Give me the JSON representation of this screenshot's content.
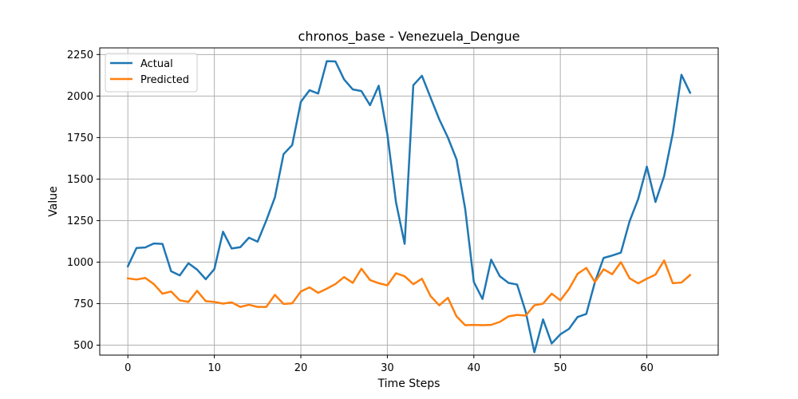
{
  "chart_data": {
    "type": "line",
    "title": "chronos_base - Venezuela_Dengue",
    "xlabel": "Time Steps",
    "ylabel": "Value",
    "xlim": [
      -3.25,
      68.25
    ],
    "ylim": [
      440,
      2290
    ],
    "xticks": [
      0,
      10,
      20,
      30,
      40,
      50,
      60
    ],
    "yticks": [
      500,
      750,
      1000,
      1250,
      1500,
      1750,
      2000,
      2250
    ],
    "grid": true,
    "legend_position": "upper-left",
    "series": [
      {
        "name": "Actual",
        "color": "#1f77b4",
        "values": [
          975,
          1085,
          1088,
          1112,
          1110,
          945,
          920,
          993,
          955,
          897,
          958,
          1183,
          1082,
          1090,
          1147,
          1123,
          1250,
          1390,
          1650,
          1705,
          1965,
          2035,
          2015,
          2210,
          2208,
          2100,
          2040,
          2030,
          1945,
          2062,
          1770,
          1360,
          1110,
          2065,
          2122,
          1990,
          1860,
          1750,
          1618,
          1320,
          880,
          778,
          1015,
          915,
          875,
          865,
          700,
          457,
          655,
          510,
          565,
          598,
          670,
          688,
          880,
          1025,
          1040,
          1057,
          1245,
          1380,
          1575,
          1362,
          1518,
          1775,
          2128,
          2020
        ]
      },
      {
        "name": "Predicted",
        "color": "#ff7f0e",
        "values": [
          902,
          895,
          905,
          868,
          810,
          823,
          770,
          760,
          827,
          765,
          760,
          750,
          758,
          730,
          743,
          730,
          730,
          803,
          748,
          752,
          823,
          848,
          815,
          840,
          868,
          910,
          875,
          960,
          892,
          873,
          860,
          933,
          915,
          867,
          900,
          795,
          740,
          785,
          673,
          620,
          622,
          620,
          622,
          640,
          673,
          682,
          678,
          740,
          750,
          810,
          770,
          838,
          930,
          965,
          880,
          957,
          927,
          1000,
          903,
          872,
          900,
          925,
          1010,
          873,
          877,
          922
        ]
      }
    ]
  }
}
